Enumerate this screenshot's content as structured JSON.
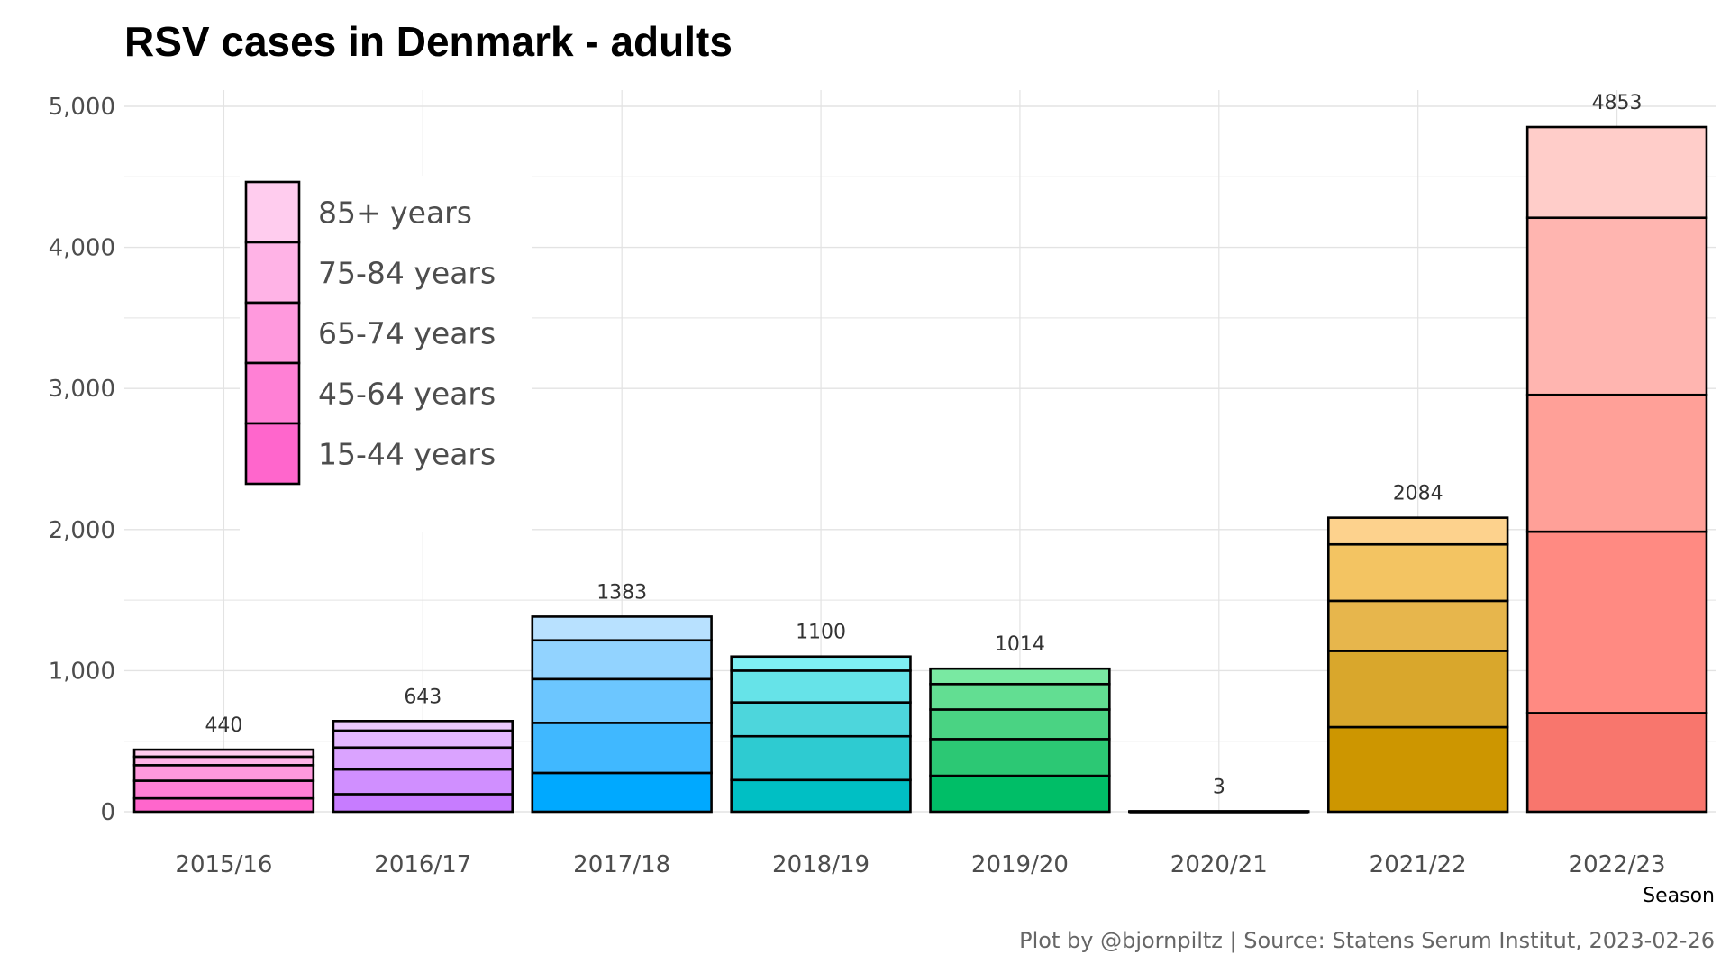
{
  "chart_data": {
    "type": "bar",
    "stacked": true,
    "title": "RSV cases in Denmark - adults",
    "xlabel": "Season",
    "ylabel": "",
    "ylim": [
      0,
      5000
    ],
    "y_ticks": [
      0,
      1000,
      2000,
      3000,
      4000,
      5000
    ],
    "y_tick_labels": [
      "0",
      "1,000",
      "2,000",
      "3,000",
      "4,000",
      "5,000"
    ],
    "grid": true,
    "legend_position": "top-left",
    "legend_entries": [
      "85+ years",
      "75-84 years",
      "65-74 years",
      "45-64 years",
      "15-44 years"
    ],
    "age_groups_bottom_to_top": [
      "15-44 years",
      "45-64 years",
      "65-74 years",
      "75-84 years",
      "85+ years"
    ],
    "legend_colors_bottom_to_top": [
      "#ff66cc",
      "#ff80d5",
      "#ff99dd",
      "#ffb3e6",
      "#ffccee"
    ],
    "categories": [
      "2015/16",
      "2016/17",
      "2017/18",
      "2018/19",
      "2019/20",
      "2020/21",
      "2021/22",
      "2022/23"
    ],
    "totals": [
      440,
      643,
      1383,
      1100,
      1014,
      3,
      2084,
      4853
    ],
    "total_labels": [
      "440",
      "643",
      "1383",
      "1100",
      "1014",
      "3",
      "2084",
      "4853"
    ],
    "stacks_bottom_to_top": [
      [
        95,
        125,
        110,
        60,
        50
      ],
      [
        125,
        175,
        155,
        120,
        68
      ],
      [
        275,
        355,
        310,
        275,
        168
      ],
      [
        225,
        310,
        240,
        225,
        100
      ],
      [
        255,
        260,
        210,
        180,
        109
      ],
      [
        1,
        1,
        1,
        0,
        0
      ],
      [
        600,
        540,
        355,
        400,
        189
      ],
      [
        700,
        1285,
        970,
        1255,
        643
      ]
    ],
    "season_colors": [
      [
        "#ff66cc",
        "#ff80d5",
        "#ff99dd",
        "#ffb3e6",
        "#ffccee"
      ],
      [
        "#c77cff",
        "#d08fff",
        "#daa3ff",
        "#e3b8ff",
        "#eccaff"
      ],
      [
        "#00a9ff",
        "#40b8ff",
        "#6cc6ff",
        "#92d3ff",
        "#b8e1ff"
      ],
      [
        "#00bfc4",
        "#2ecbd1",
        "#4dd6dc",
        "#66e3e8",
        "#7ff0f4"
      ],
      [
        "#00be67",
        "#2cc874",
        "#4ad383",
        "#62de92",
        "#79e9a2"
      ],
      [
        "#7cae00",
        "#8fbb26",
        "#a2c84b",
        "#b5d570",
        "#c8e296"
      ],
      [
        "#cd9600",
        "#d9a72c",
        "#e7b64c",
        "#f3c462",
        "#fdd28d"
      ],
      [
        "#f8766d",
        "#ff8a82",
        "#ffa098",
        "#ffb5b0",
        "#ffcdc9"
      ]
    ],
    "caption": "Plot by @bjornpiltz | Source: Statens Serum Institut, 2023-02-26"
  }
}
